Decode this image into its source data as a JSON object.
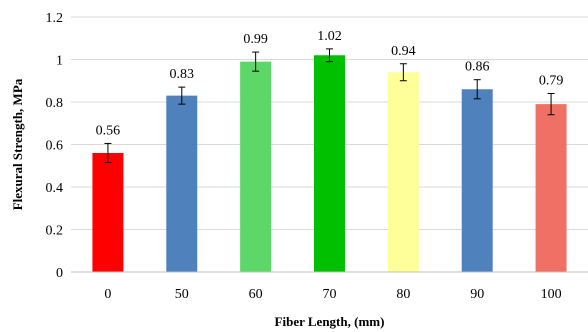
{
  "chart_data": {
    "type": "bar",
    "title": "",
    "xlabel": "Fiber Length, (mm)",
    "ylabel": "Flexural Strength, MPa",
    "categories": [
      "0",
      "50",
      "60",
      "70",
      "80",
      "90",
      "100"
    ],
    "values": [
      0.56,
      0.83,
      0.99,
      1.02,
      0.94,
      0.86,
      0.79
    ],
    "value_labels": [
      "0.56",
      "0.83",
      "0.99",
      "1.02",
      "0.94",
      "0.86",
      "0.79"
    ],
    "error": [
      0.045,
      0.04,
      0.045,
      0.03,
      0.04,
      0.045,
      0.05
    ],
    "colors": [
      "#ff0000",
      "#4f81bd",
      "#5dd868",
      "#00c000",
      "#ffff99",
      "#4f81bd",
      "#f07065"
    ],
    "ylim": [
      0,
      1.2
    ],
    "yticks": [
      "0",
      "0.2",
      "0.4",
      "0.6",
      "0.8",
      "1",
      "1.2"
    ],
    "grid": true,
    "legend": false
  }
}
